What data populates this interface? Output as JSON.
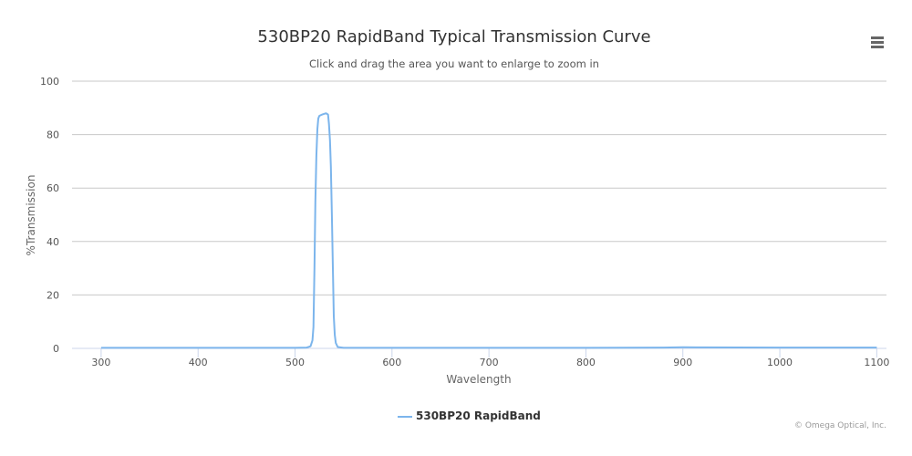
{
  "chart_data": {
    "type": "line",
    "title": "530BP20 RapidBand Typical Transmission Curve",
    "subtitle": "Click and drag the area you want to enlarge to zoom in",
    "xlabel": "Wavelength",
    "ylabel": "%Transmission",
    "xlim": [
      270,
      1110
    ],
    "ylim": [
      0,
      100
    ],
    "x_ticks": [
      300,
      400,
      500,
      600,
      700,
      800,
      900,
      1000,
      1100
    ],
    "y_ticks": [
      0,
      20,
      40,
      60,
      80,
      100
    ],
    "grid": "horizontal",
    "legend_position": "bottom-center",
    "series": [
      {
        "name": "530BP20 RapidBand",
        "color": "#7cb5ec",
        "x": [
          300,
          400,
          500,
          512,
          516,
          518,
          519,
          520,
          521,
          522,
          523,
          524,
          525,
          526,
          528,
          532,
          534,
          535,
          536,
          537,
          538,
          539,
          540,
          541,
          542,
          544,
          550,
          600,
          700,
          800,
          880,
          900,
          1000,
          1100
        ],
        "y": [
          0.2,
          0.2,
          0.2,
          0.3,
          0.8,
          3,
          8,
          30,
          55,
          72,
          82,
          86,
          87,
          87.2,
          87.5,
          88,
          87.5,
          84,
          78,
          68,
          50,
          30,
          12,
          5,
          2,
          0.5,
          0.2,
          0.2,
          0.2,
          0.2,
          0.3,
          0.4,
          0.3,
          0.3
        ]
      }
    ]
  },
  "credits": "© Omega Optical, Inc.",
  "menu_icon": "hamburger-menu-icon"
}
